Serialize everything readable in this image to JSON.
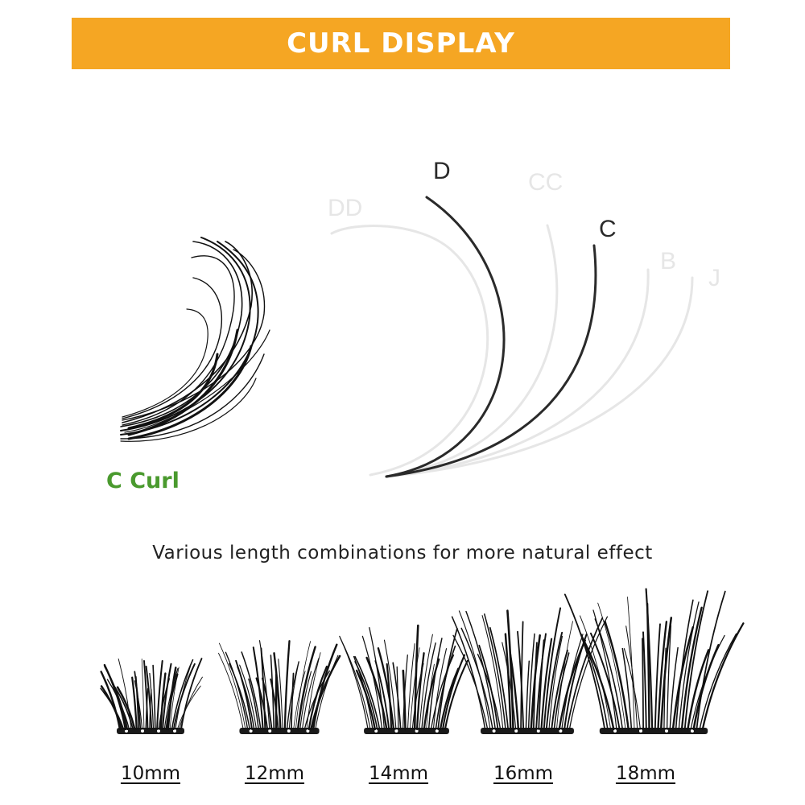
{
  "header": {
    "title": "CURL DISPLAY"
  },
  "curl_diagram": {
    "curl_labels": [
      "DD",
      "D",
      "CC",
      "C",
      "B",
      "J"
    ],
    "highlighted_labels": [
      "D",
      "C"
    ],
    "highlight_color": "#2a2a2a",
    "faded_color": "#e6e6e6"
  },
  "sample": {
    "caption": "C Curl",
    "caption_color": "#4a9a2e"
  },
  "tagline": "Various length combinations for more natural effect",
  "lengths": [
    "10mm",
    "12mm",
    "14mm",
    "16mm",
    "18mm"
  ],
  "colors": {
    "banner": "#f5a623",
    "lash": "#111111"
  }
}
